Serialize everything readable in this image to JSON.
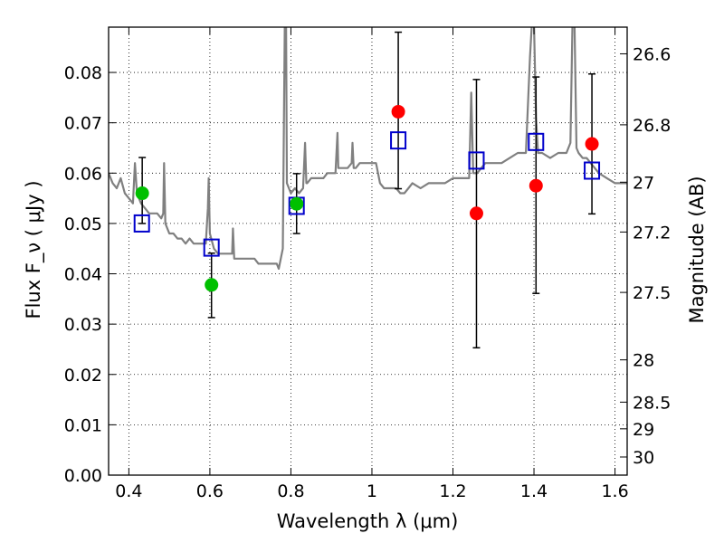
{
  "chart_data": {
    "type": "scatter",
    "xlabel": "Wavelength  λ (μm)",
    "ylabel": "Flux  F_ν  ( μJy )",
    "ylabel_right": "Magnitude (AB)",
    "xlim": [
      0.35,
      1.63
    ],
    "ylim": [
      0.0,
      0.089
    ],
    "grid": true,
    "x_ticks": [
      {
        "v": 0.4,
        "label": "0.4"
      },
      {
        "v": 0.6,
        "label": "0.6"
      },
      {
        "v": 0.8,
        "label": "0.8"
      },
      {
        "v": 1.0,
        "label": "1"
      },
      {
        "v": 1.2,
        "label": "1.2"
      },
      {
        "v": 1.4,
        "label": "1.4"
      },
      {
        "v": 1.6,
        "label": "1.6"
      }
    ],
    "y_ticks": [
      {
        "v": 0.0,
        "label": "0.00"
      },
      {
        "v": 0.01,
        "label": "0.01"
      },
      {
        "v": 0.02,
        "label": "0.02"
      },
      {
        "v": 0.03,
        "label": "0.03"
      },
      {
        "v": 0.04,
        "label": "0.04"
      },
      {
        "v": 0.05,
        "label": "0.05"
      },
      {
        "v": 0.06,
        "label": "0.06"
      },
      {
        "v": 0.07,
        "label": "0.07"
      },
      {
        "v": 0.08,
        "label": "0.08"
      }
    ],
    "mag_ticks": [
      {
        "flux": 0.0837,
        "label": "26.6"
      },
      {
        "flux": 0.0696,
        "label": "26.8"
      },
      {
        "flux": 0.0582,
        "label": "27"
      },
      {
        "flux": 0.0483,
        "label": "27.2"
      },
      {
        "flux": 0.0363,
        "label": "27.5"
      },
      {
        "flux": 0.0229,
        "label": "28"
      },
      {
        "flux": 0.0145,
        "label": "28.5"
      },
      {
        "flux": 0.0092,
        "label": "29"
      },
      {
        "flux": 0.0036,
        "label": "30"
      }
    ],
    "series": [
      {
        "color": "#808080",
        "kind": "line",
        "x": [
          0.35,
          0.36,
          0.37,
          0.38,
          0.39,
          0.4,
          0.41,
          0.415,
          0.42,
          0.43,
          0.44,
          0.45,
          0.46,
          0.47,
          0.48,
          0.485,
          0.487,
          0.49,
          0.5,
          0.51,
          0.52,
          0.53,
          0.54,
          0.55,
          0.56,
          0.57,
          0.58,
          0.59,
          0.595,
          0.597,
          0.6,
          0.61,
          0.62,
          0.63,
          0.64,
          0.65,
          0.655,
          0.657,
          0.66,
          0.67,
          0.68,
          0.69,
          0.7,
          0.71,
          0.72,
          0.73,
          0.74,
          0.75,
          0.76,
          0.765,
          0.77,
          0.78,
          0.785,
          0.788,
          0.79,
          0.8,
          0.81,
          0.82,
          0.83,
          0.835,
          0.838,
          0.84,
          0.85,
          0.86,
          0.87,
          0.88,
          0.89,
          0.9,
          0.91,
          0.915,
          0.917,
          0.92,
          0.93,
          0.94,
          0.95,
          0.952,
          0.955,
          0.96,
          0.97,
          0.98,
          0.99,
          1.0,
          1.01,
          1.02,
          1.03,
          1.04,
          1.05,
          1.06,
          1.07,
          1.08,
          1.09,
          1.1,
          1.12,
          1.14,
          1.16,
          1.18,
          1.2,
          1.22,
          1.24,
          1.245,
          1.25,
          1.26,
          1.27,
          1.28,
          1.3,
          1.32,
          1.34,
          1.36,
          1.38,
          1.39,
          1.395,
          1.4,
          1.405,
          1.41,
          1.42,
          1.44,
          1.46,
          1.48,
          1.49,
          1.495,
          1.5,
          1.505,
          1.51,
          1.52,
          1.53,
          1.54,
          1.55,
          1.56,
          1.58,
          1.6,
          1.62,
          1.63
        ],
        "y": [
          0.06,
          0.058,
          0.057,
          0.059,
          0.056,
          0.055,
          0.054,
          0.062,
          0.056,
          0.054,
          0.053,
          0.052,
          0.052,
          0.052,
          0.051,
          0.052,
          0.062,
          0.05,
          0.048,
          0.048,
          0.047,
          0.047,
          0.046,
          0.047,
          0.046,
          0.046,
          0.046,
          0.046,
          0.053,
          0.059,
          0.048,
          0.045,
          0.044,
          0.044,
          0.044,
          0.044,
          0.044,
          0.049,
          0.043,
          0.043,
          0.043,
          0.043,
          0.043,
          0.043,
          0.042,
          0.042,
          0.042,
          0.042,
          0.042,
          0.042,
          0.041,
          0.045,
          0.09,
          0.09,
          0.058,
          0.056,
          0.057,
          0.056,
          0.057,
          0.066,
          0.058,
          0.058,
          0.059,
          0.059,
          0.059,
          0.059,
          0.06,
          0.06,
          0.06,
          0.068,
          0.061,
          0.061,
          0.061,
          0.061,
          0.062,
          0.066,
          0.061,
          0.061,
          0.062,
          0.062,
          0.062,
          0.062,
          0.062,
          0.058,
          0.057,
          0.057,
          0.057,
          0.057,
          0.056,
          0.056,
          0.057,
          0.058,
          0.057,
          0.058,
          0.058,
          0.058,
          0.059,
          0.059,
          0.059,
          0.076,
          0.06,
          0.06,
          0.061,
          0.062,
          0.062,
          0.062,
          0.063,
          0.064,
          0.064,
          0.083,
          0.09,
          0.09,
          0.071,
          0.064,
          0.064,
          0.063,
          0.064,
          0.064,
          0.066,
          0.09,
          0.09,
          0.065,
          0.064,
          0.063,
          0.063,
          0.062,
          0.061,
          0.06,
          0.059,
          0.058,
          0.058,
          0.058
        ]
      },
      {
        "color": "#00c000",
        "kind": "points",
        "x": [
          0.433,
          0.604,
          0.814
        ],
        "y": [
          0.056,
          0.0378,
          0.0539
        ],
        "err_low": [
          0.05,
          0.0313,
          0.048
        ],
        "err_high": [
          0.0631,
          0.0441,
          0.0599
        ]
      },
      {
        "color": "#ff0000",
        "kind": "points",
        "x": [
          1.065,
          1.258,
          1.405,
          1.543
        ],
        "y": [
          0.0722,
          0.052,
          0.0575,
          0.0658
        ],
        "err_low": [
          0.0569,
          0.0253,
          0.0361,
          0.0519
        ],
        "err_high": [
          0.088,
          0.0786,
          0.0791,
          0.0797
        ]
      },
      {
        "color": "#0000cc",
        "kind": "open-squares",
        "x": [
          0.432,
          0.604,
          0.814,
          1.065,
          1.258,
          1.405,
          1.543
        ],
        "y": [
          0.05,
          0.0452,
          0.0535,
          0.0665,
          0.0625,
          0.0662,
          0.0605
        ]
      }
    ]
  }
}
